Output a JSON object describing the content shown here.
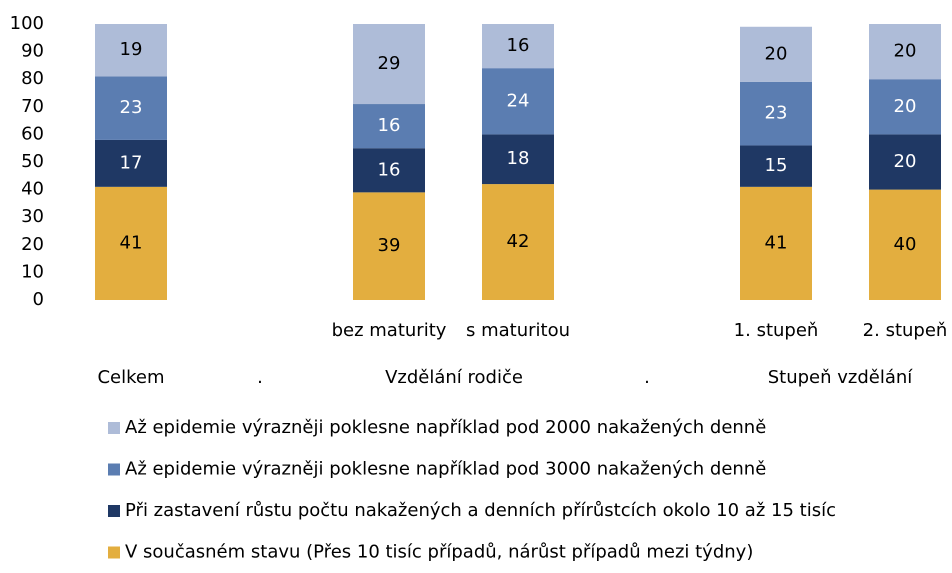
{
  "chart_data": {
    "type": "stacked_bar",
    "categories": [
      null,
      null,
      "bez maturity",
      "s maturitou",
      null,
      "1. stupeň",
      "2. stupeň"
    ],
    "group_labels": [
      "Celkem",
      ".",
      "Vzdělání rodiče",
      ".",
      "Stupeň vzdělání"
    ],
    "series": [
      {
        "name": "V současném stavu (Přes 10 tisíc případů, nárůst případů mezi týdny)",
        "color": "#e3ae3f",
        "values": [
          41,
          null,
          39,
          42,
          null,
          41,
          40
        ]
      },
      {
        "name": "Při zastavení růstu počtu nakažených a denních přírůstcích okolo 10 až 15 tisíc",
        "color": "#1f3864",
        "values": [
          17,
          null,
          16,
          18,
          null,
          15,
          20
        ]
      },
      {
        "name": "Až epidemie výrazněji poklesne například pod 3000 nakažených denně",
        "color": "#5b7db1",
        "values": [
          23,
          null,
          16,
          24,
          null,
          23,
          20
        ]
      },
      {
        "name": "Až epidemie výrazněji poklesne například pod 2000 nakažených denně",
        "color": "#aebcd8",
        "values": [
          19,
          null,
          29,
          16,
          null,
          20,
          20
        ]
      }
    ],
    "ylim": [
      0,
      100
    ],
    "yticks": [
      0,
      10,
      20,
      30,
      40,
      50,
      60,
      70,
      80,
      90,
      100
    ],
    "grid": false
  }
}
